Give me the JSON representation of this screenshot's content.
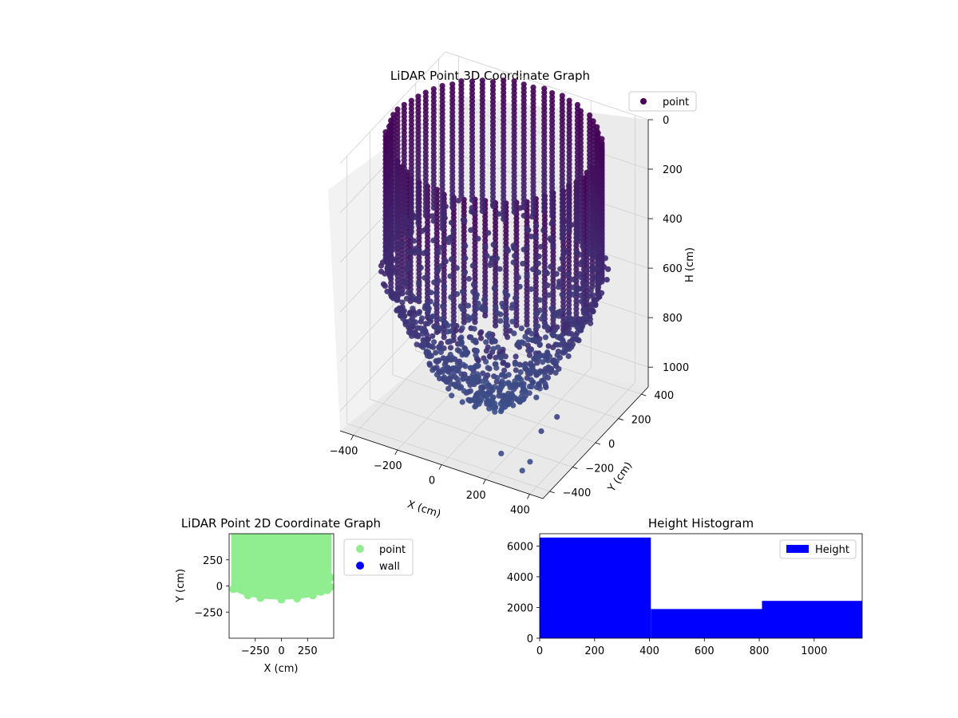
{
  "chart_data": [
    {
      "type": "scatter",
      "projection": "3d",
      "title": "LiDAR Point 3D Coordinate Graph",
      "xlabel": "X (cm)",
      "ylabel": "Y (cm)",
      "zlabel": "H (cm)",
      "xticks": [
        -400,
        -200,
        0,
        200,
        400
      ],
      "yticks": [
        -400,
        -200,
        0,
        200,
        400
      ],
      "zticks": [
        0,
        200,
        400,
        600,
        800,
        1000
      ],
      "xlim": [
        -460,
        460
      ],
      "ylim": [
        -460,
        460
      ],
      "zlim": [
        0,
        1080
      ],
      "z_axis_inverted": true,
      "legend": [
        "point"
      ],
      "legend_loc": "upper right",
      "colormap": "viridis",
      "color_start": "#440154",
      "color_end": "#3b528b",
      "series": [
        {
          "name": "point",
          "shape": "cylindrical wall of radius ~430 from H 0 to ~450, floor bowl down to H ~1050",
          "points_x": [
            430,
            304,
            0,
            -304,
            -430,
            -304,
            0,
            304,
            430,
            0,
            -430,
            0,
            200,
            -200,
            0,
            360,
            -380
          ],
          "points_y": [
            0,
            304,
            430,
            304,
            0,
            -304,
            -430,
            -304,
            0,
            430,
            0,
            -430,
            150,
            -150,
            0,
            -380,
            120
          ],
          "points_h": [
            0,
            0,
            0,
            0,
            0,
            0,
            0,
            0,
            450,
            450,
            450,
            450,
            800,
            850,
            1050,
            1000,
            600
          ]
        }
      ],
      "grid": true
    },
    {
      "type": "scatter",
      "title": "LiDAR Point 2D Coordinate Graph",
      "xlabel": "X (cm)",
      "ylabel": "Y (cm)",
      "xticks": [
        -250,
        0,
        250
      ],
      "yticks": [
        -250,
        0,
        250
      ],
      "xlim": [
        -500,
        500
      ],
      "ylim": [
        -500,
        500
      ],
      "legend": [
        "point",
        "wall"
      ],
      "legend_loc": "outside right",
      "series": [
        {
          "name": "point",
          "color": "#90ee90",
          "region": "filled half-disc of points, X -480..480, Y -130..500"
        },
        {
          "name": "wall",
          "color": "#0000ff",
          "points": []
        }
      ]
    },
    {
      "type": "bar",
      "subtype": "histogram",
      "title": "Height Histogram",
      "xlabel": "",
      "ylabel": "",
      "xticks": [
        0,
        200,
        400,
        600,
        800,
        1000
      ],
      "yticks": [
        0,
        2000,
        4000,
        6000
      ],
      "xlim": [
        0,
        1175
      ],
      "ylim": [
        0,
        6800
      ],
      "bins": [
        [
          0,
          405
        ],
        [
          405,
          810
        ],
        [
          810,
          1175
        ]
      ],
      "values": [
        6550,
        1900,
        2430
      ],
      "legend": [
        "Height"
      ],
      "legend_loc": "upper right",
      "color": "#0000ff"
    }
  ]
}
